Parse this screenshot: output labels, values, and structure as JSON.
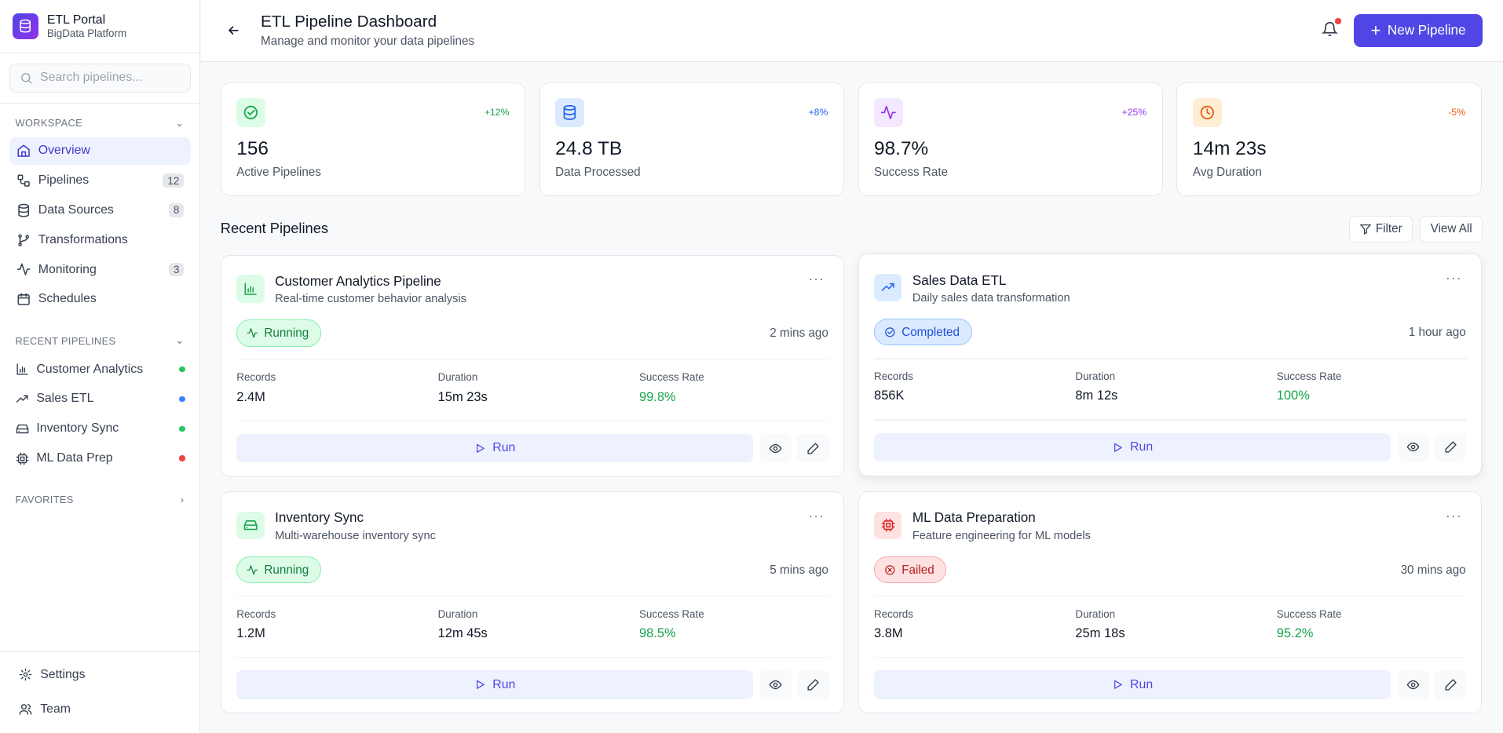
{
  "sidebar": {
    "brand": "ETL Portal",
    "subbrand": "BigData Platform",
    "search_placeholder": "Search pipelines...",
    "workspace_label": "WORKSPACE",
    "workspace": [
      {
        "label": "Overview",
        "icon": "home-icon",
        "active": true
      },
      {
        "label": "Pipelines",
        "icon": "workflow-icon",
        "badge": "12"
      },
      {
        "label": "Data Sources",
        "icon": "database-icon",
        "badge": "8"
      },
      {
        "label": "Transformations",
        "icon": "git-branch-icon"
      },
      {
        "label": "Monitoring",
        "icon": "activity-icon",
        "badge": "3"
      },
      {
        "label": "Schedules",
        "icon": "calendar-icon"
      }
    ],
    "recent_label": "RECENT PIPELINES",
    "recent": [
      {
        "label": "Customer Analytics",
        "icon": "bar-chart-icon",
        "status_color": "#22c55e"
      },
      {
        "label": "Sales ETL",
        "icon": "trending-up-icon",
        "status_color": "#3b82f6"
      },
      {
        "label": "Inventory Sync",
        "icon": "hard-drive-icon",
        "status_color": "#22c55e"
      },
      {
        "label": "ML Data Prep",
        "icon": "cpu-icon",
        "status_color": "#ef4444"
      }
    ],
    "favorites_label": "FAVORITES",
    "footer": [
      {
        "label": "Settings",
        "icon": "gear-icon"
      },
      {
        "label": "Team",
        "icon": "users-icon"
      }
    ]
  },
  "header": {
    "title": "ETL Pipeline Dashboard",
    "subtitle": "Manage and monitor your data pipelines",
    "new_button": "New Pipeline",
    "accent": "#4f46e5"
  },
  "stats": [
    {
      "value": "156",
      "label": "Active Pipelines",
      "change": "+12%",
      "icon": "check-circle-icon",
      "color": "#16a34a",
      "bg": "#dcfce7"
    },
    {
      "value": "24.8 TB",
      "label": "Data Processed",
      "change": "+8%",
      "icon": "database-icon",
      "color": "#2563eb",
      "bg": "#dbeafe"
    },
    {
      "value": "98.7%",
      "label": "Success Rate",
      "change": "+25%",
      "icon": "activity-icon",
      "color": "#9333ea",
      "bg": "#f3e8ff"
    },
    {
      "value": "14m 23s",
      "label": "Avg Duration",
      "change": "-5%",
      "icon": "clock-icon",
      "color": "#ea580c",
      "bg": "#ffedd5"
    }
  ],
  "recent_section": {
    "title": "Recent Pipelines",
    "filter": "Filter",
    "view_all": "View All"
  },
  "metric_labels": {
    "records": "Records",
    "duration": "Duration",
    "success": "Success Rate"
  },
  "run_label": "Run",
  "pipelines": [
    {
      "name": "Customer Analytics Pipeline",
      "desc": "Real-time customer behavior analysis",
      "status": "Running",
      "time": "2 mins ago",
      "records": "2.4M",
      "duration": "15m 23s",
      "success": "99.8%",
      "icon": "bar-chart-icon",
      "color": "#16a34a",
      "bg": "#dcfce7"
    },
    {
      "name": "Sales Data ETL",
      "desc": "Daily sales data transformation",
      "status": "Completed",
      "time": "1 hour ago",
      "records": "856K",
      "duration": "8m 12s",
      "success": "100%",
      "icon": "trending-up-icon",
      "color": "#2563eb",
      "bg": "#dbeafe"
    },
    {
      "name": "Inventory Sync",
      "desc": "Multi-warehouse inventory sync",
      "status": "Running",
      "time": "5 mins ago",
      "records": "1.2M",
      "duration": "12m 45s",
      "success": "98.5%",
      "icon": "hard-drive-icon",
      "color": "#16a34a",
      "bg": "#dcfce7"
    },
    {
      "name": "ML Data Preparation",
      "desc": "Feature engineering for ML models",
      "status": "Failed",
      "time": "30 mins ago",
      "records": "3.8M",
      "duration": "25m 18s",
      "success": "95.2%",
      "icon": "cpu-icon",
      "color": "#dc2626",
      "bg": "#fee2e2"
    }
  ]
}
